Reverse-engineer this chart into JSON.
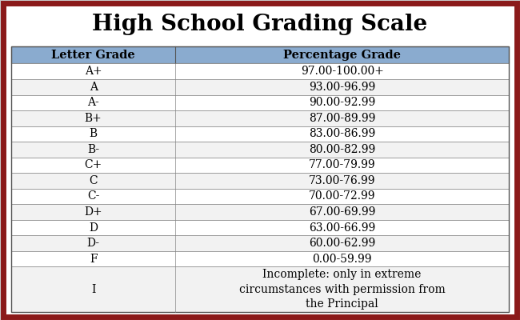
{
  "title": "High School Grading Scale",
  "header": [
    "Letter Grade",
    "Percentage Grade"
  ],
  "rows": [
    [
      "A+",
      "97.00-100.00+"
    ],
    [
      "A",
      "93.00-96.99"
    ],
    [
      "A-",
      "90.00-92.99"
    ],
    [
      "B+",
      "87.00-89.99"
    ],
    [
      "B",
      "83.00-86.99"
    ],
    [
      "B-",
      "80.00-82.99"
    ],
    [
      "C+",
      "77.00-79.99"
    ],
    [
      "C",
      "73.00-76.99"
    ],
    [
      "C-",
      "70.00-72.99"
    ],
    [
      "D+",
      "67.00-69.99"
    ],
    [
      "D",
      "63.00-66.99"
    ],
    [
      "D-",
      "60.00-62.99"
    ],
    [
      "F",
      "0.00-59.99"
    ],
    [
      "I",
      "Incomplete: only in extreme\ncircumstances with permission from\nthe Principal"
    ]
  ],
  "header_bg": "#8aabcf",
  "row_bg_white": "#ffffff",
  "row_bg_gray": "#f2f2f2",
  "border_color": "#8b1a1a",
  "fig_bg": "#c8c8c8",
  "inner_bg": "#ffffff",
  "title_fontsize": 20,
  "header_fontsize": 10.5,
  "cell_fontsize": 10,
  "col_split": 0.33
}
